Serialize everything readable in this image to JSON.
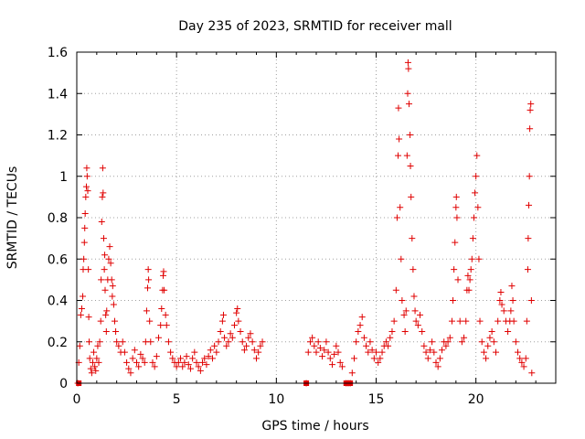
{
  "chart_data": {
    "type": "scatter",
    "title": "Day 235 of 2023, SRMTID for receiver mall",
    "xlabel": "GPS time / hours",
    "ylabel": "SRMTID / TECUs",
    "xlim": [
      0,
      24
    ],
    "ylim": [
      0,
      1.6
    ],
    "xticks": [
      0,
      5,
      10,
      15,
      20
    ],
    "xtick_labels": [
      "0",
      "5",
      "10",
      "15",
      "20"
    ],
    "yticks": [
      0,
      0.2,
      0.4,
      0.6,
      0.8,
      1.0,
      1.2,
      1.4,
      1.6
    ],
    "ytick_labels": [
      "0",
      "0.2",
      "0.4",
      "0.6",
      "0.8",
      "1",
      "1.2",
      "1.4",
      "1.6"
    ],
    "grid": true,
    "marker": "+",
    "color": "#e00000",
    "series": [
      {
        "name": "SRMTID",
        "points": [
          [
            0.05,
            0.0
          ],
          [
            0.1,
            0.1
          ],
          [
            0.15,
            0.18
          ],
          [
            0.2,
            0.33
          ],
          [
            0.25,
            0.36
          ],
          [
            0.3,
            0.42
          ],
          [
            0.32,
            0.55
          ],
          [
            0.35,
            0.6
          ],
          [
            0.38,
            0.68
          ],
          [
            0.4,
            0.75
          ],
          [
            0.42,
            0.82
          ],
          [
            0.45,
            0.9
          ],
          [
            0.48,
            0.95
          ],
          [
            0.5,
            1.04
          ],
          [
            0.52,
            1.0
          ],
          [
            0.55,
            0.93
          ],
          [
            0.58,
            0.55
          ],
          [
            0.6,
            0.32
          ],
          [
            0.62,
            0.2
          ],
          [
            0.65,
            0.12
          ],
          [
            0.7,
            0.07
          ],
          [
            0.75,
            0.05
          ],
          [
            0.8,
            0.1
          ],
          [
            0.85,
            0.15
          ],
          [
            0.9,
            0.08
          ],
          [
            0.95,
            0.06
          ],
          [
            1.0,
            0.12
          ],
          [
            1.05,
            0.18
          ],
          [
            1.1,
            0.1
          ],
          [
            1.15,
            0.2
          ],
          [
            1.2,
            0.3
          ],
          [
            1.22,
            0.5
          ],
          [
            1.25,
            0.78
          ],
          [
            1.28,
            0.9
          ],
          [
            1.3,
            1.04
          ],
          [
            1.32,
            0.92
          ],
          [
            1.35,
            0.7
          ],
          [
            1.38,
            0.55
          ],
          [
            1.4,
            0.62
          ],
          [
            1.42,
            0.45
          ],
          [
            1.45,
            0.33
          ],
          [
            1.48,
            0.25
          ],
          [
            1.5,
            0.35
          ],
          [
            1.55,
            0.5
          ],
          [
            1.6,
            0.6
          ],
          [
            1.65,
            0.66
          ],
          [
            1.7,
            0.58
          ],
          [
            1.75,
            0.5
          ],
          [
            1.78,
            0.42
          ],
          [
            1.8,
            0.47
          ],
          [
            1.85,
            0.38
          ],
          [
            1.9,
            0.3
          ],
          [
            1.95,
            0.25
          ],
          [
            2.0,
            0.2
          ],
          [
            2.1,
            0.18
          ],
          [
            2.2,
            0.15
          ],
          [
            2.3,
            0.2
          ],
          [
            2.4,
            0.15
          ],
          [
            2.5,
            0.1
          ],
          [
            2.6,
            0.07
          ],
          [
            2.7,
            0.05
          ],
          [
            2.8,
            0.12
          ],
          [
            2.9,
            0.16
          ],
          [
            3.0,
            0.1
          ],
          [
            3.1,
            0.08
          ],
          [
            3.2,
            0.14
          ],
          [
            3.3,
            0.12
          ],
          [
            3.4,
            0.1
          ],
          [
            3.45,
            0.2
          ],
          [
            3.5,
            0.35
          ],
          [
            3.55,
            0.46
          ],
          [
            3.58,
            0.55
          ],
          [
            3.6,
            0.5
          ],
          [
            3.65,
            0.3
          ],
          [
            3.7,
            0.2
          ],
          [
            3.8,
            0.1
          ],
          [
            3.9,
            0.08
          ],
          [
            4.0,
            0.13
          ],
          [
            4.1,
            0.22
          ],
          [
            4.2,
            0.28
          ],
          [
            4.25,
            0.36
          ],
          [
            4.3,
            0.45
          ],
          [
            4.33,
            0.52
          ],
          [
            4.35,
            0.54
          ],
          [
            4.38,
            0.45
          ],
          [
            4.45,
            0.33
          ],
          [
            4.5,
            0.28
          ],
          [
            4.6,
            0.2
          ],
          [
            4.7,
            0.15
          ],
          [
            4.8,
            0.12
          ],
          [
            4.9,
            0.1
          ],
          [
            5.0,
            0.08
          ],
          [
            5.1,
            0.1
          ],
          [
            5.2,
            0.12
          ],
          [
            5.3,
            0.08
          ],
          [
            5.4,
            0.1
          ],
          [
            5.5,
            0.13
          ],
          [
            5.6,
            0.09
          ],
          [
            5.7,
            0.07
          ],
          [
            5.8,
            0.12
          ],
          [
            5.9,
            0.15
          ],
          [
            6.0,
            0.1
          ],
          [
            6.1,
            0.08
          ],
          [
            6.2,
            0.06
          ],
          [
            6.3,
            0.1
          ],
          [
            6.4,
            0.12
          ],
          [
            6.5,
            0.09
          ],
          [
            6.6,
            0.13
          ],
          [
            6.7,
            0.16
          ],
          [
            6.8,
            0.12
          ],
          [
            6.9,
            0.18
          ],
          [
            7.0,
            0.15
          ],
          [
            7.1,
            0.2
          ],
          [
            7.2,
            0.25
          ],
          [
            7.3,
            0.3
          ],
          [
            7.35,
            0.33
          ],
          [
            7.4,
            0.22
          ],
          [
            7.5,
            0.18
          ],
          [
            7.6,
            0.2
          ],
          [
            7.7,
            0.24
          ],
          [
            7.8,
            0.22
          ],
          [
            7.9,
            0.28
          ],
          [
            8.0,
            0.34
          ],
          [
            8.05,
            0.36
          ],
          [
            8.1,
            0.3
          ],
          [
            8.2,
            0.25
          ],
          [
            8.3,
            0.2
          ],
          [
            8.4,
            0.16
          ],
          [
            8.5,
            0.18
          ],
          [
            8.6,
            0.22
          ],
          [
            8.7,
            0.24
          ],
          [
            8.8,
            0.2
          ],
          [
            8.9,
            0.16
          ],
          [
            9.0,
            0.12
          ],
          [
            9.1,
            0.15
          ],
          [
            9.2,
            0.18
          ],
          [
            9.3,
            0.2
          ],
          [
            11.5,
            0.0
          ],
          [
            11.6,
            0.15
          ],
          [
            11.7,
            0.2
          ],
          [
            11.8,
            0.22
          ],
          [
            11.9,
            0.18
          ],
          [
            12.0,
            0.15
          ],
          [
            12.1,
            0.2
          ],
          [
            12.2,
            0.17
          ],
          [
            12.3,
            0.13
          ],
          [
            12.4,
            0.16
          ],
          [
            12.5,
            0.2
          ],
          [
            12.6,
            0.15
          ],
          [
            12.7,
            0.12
          ],
          [
            12.8,
            0.09
          ],
          [
            12.9,
            0.14
          ],
          [
            13.0,
            0.18
          ],
          [
            13.1,
            0.15
          ],
          [
            13.2,
            0.1
          ],
          [
            13.3,
            0.08
          ],
          [
            13.5,
            0.0
          ],
          [
            13.6,
            0.0
          ],
          [
            13.7,
            0.0
          ],
          [
            13.8,
            0.05
          ],
          [
            13.9,
            0.12
          ],
          [
            14.0,
            0.2
          ],
          [
            14.1,
            0.25
          ],
          [
            14.2,
            0.28
          ],
          [
            14.3,
            0.32
          ],
          [
            14.4,
            0.22
          ],
          [
            14.5,
            0.18
          ],
          [
            14.6,
            0.15
          ],
          [
            14.7,
            0.2
          ],
          [
            14.8,
            0.16
          ],
          [
            14.9,
            0.12
          ],
          [
            15.0,
            0.15
          ],
          [
            15.1,
            0.1
          ],
          [
            15.2,
            0.12
          ],
          [
            15.3,
            0.15
          ],
          [
            15.4,
            0.18
          ],
          [
            15.5,
            0.2
          ],
          [
            15.6,
            0.18
          ],
          [
            15.7,
            0.22
          ],
          [
            15.8,
            0.25
          ],
          [
            15.9,
            0.3
          ],
          [
            16.0,
            0.45
          ],
          [
            16.05,
            0.8
          ],
          [
            16.1,
            1.1
          ],
          [
            16.12,
            1.33
          ],
          [
            16.15,
            1.18
          ],
          [
            16.2,
            0.85
          ],
          [
            16.25,
            0.6
          ],
          [
            16.3,
            0.4
          ],
          [
            16.4,
            0.33
          ],
          [
            16.45,
            0.25
          ],
          [
            16.5,
            0.35
          ],
          [
            16.55,
            1.1
          ],
          [
            16.58,
            1.4
          ],
          [
            16.6,
            1.55
          ],
          [
            16.62,
            1.52
          ],
          [
            16.65,
            1.35
          ],
          [
            16.7,
            1.2
          ],
          [
            16.72,
            1.05
          ],
          [
            16.75,
            0.9
          ],
          [
            16.8,
            0.7
          ],
          [
            16.85,
            0.55
          ],
          [
            16.9,
            0.42
          ],
          [
            16.95,
            0.35
          ],
          [
            17.0,
            0.3
          ],
          [
            17.1,
            0.28
          ],
          [
            17.2,
            0.33
          ],
          [
            17.3,
            0.25
          ],
          [
            17.4,
            0.18
          ],
          [
            17.5,
            0.15
          ],
          [
            17.6,
            0.12
          ],
          [
            17.7,
            0.16
          ],
          [
            17.8,
            0.2
          ],
          [
            17.9,
            0.15
          ],
          [
            18.0,
            0.1
          ],
          [
            18.1,
            0.08
          ],
          [
            18.2,
            0.12
          ],
          [
            18.3,
            0.16
          ],
          [
            18.4,
            0.2
          ],
          [
            18.5,
            0.18
          ],
          [
            18.6,
            0.2
          ],
          [
            18.7,
            0.22
          ],
          [
            18.8,
            0.3
          ],
          [
            18.85,
            0.4
          ],
          [
            18.9,
            0.55
          ],
          [
            18.95,
            0.68
          ],
          [
            19.0,
            0.85
          ],
          [
            19.02,
            0.9
          ],
          [
            19.05,
            0.8
          ],
          [
            19.1,
            0.5
          ],
          [
            19.2,
            0.3
          ],
          [
            19.3,
            0.2
          ],
          [
            19.4,
            0.22
          ],
          [
            19.5,
            0.3
          ],
          [
            19.55,
            0.45
          ],
          [
            19.6,
            0.52
          ],
          [
            19.65,
            0.45
          ],
          [
            19.7,
            0.5
          ],
          [
            19.75,
            0.55
          ],
          [
            19.8,
            0.6
          ],
          [
            19.85,
            0.7
          ],
          [
            19.9,
            0.8
          ],
          [
            19.95,
            0.92
          ],
          [
            20.0,
            1.0
          ],
          [
            20.05,
            1.1
          ],
          [
            20.1,
            0.85
          ],
          [
            20.15,
            0.6
          ],
          [
            20.2,
            0.3
          ],
          [
            20.3,
            0.2
          ],
          [
            20.4,
            0.15
          ],
          [
            20.5,
            0.12
          ],
          [
            20.6,
            0.18
          ],
          [
            20.7,
            0.22
          ],
          [
            20.8,
            0.25
          ],
          [
            20.9,
            0.2
          ],
          [
            21.0,
            0.15
          ],
          [
            21.1,
            0.3
          ],
          [
            21.2,
            0.4
          ],
          [
            21.25,
            0.44
          ],
          [
            21.3,
            0.38
          ],
          [
            21.4,
            0.35
          ],
          [
            21.5,
            0.3
          ],
          [
            21.6,
            0.25
          ],
          [
            21.7,
            0.3
          ],
          [
            21.75,
            0.35
          ],
          [
            21.8,
            0.47
          ],
          [
            21.85,
            0.4
          ],
          [
            21.9,
            0.3
          ],
          [
            22.0,
            0.2
          ],
          [
            22.1,
            0.15
          ],
          [
            22.2,
            0.12
          ],
          [
            22.3,
            0.1
          ],
          [
            22.4,
            0.08
          ],
          [
            22.5,
            0.12
          ],
          [
            22.55,
            0.3
          ],
          [
            22.6,
            0.55
          ],
          [
            22.62,
            0.7
          ],
          [
            22.65,
            0.86
          ],
          [
            22.68,
            1.0
          ],
          [
            22.7,
            1.23
          ],
          [
            22.72,
            1.32
          ],
          [
            22.75,
            1.35
          ],
          [
            22.78,
            0.4
          ],
          [
            22.8,
            0.05
          ]
        ]
      }
    ],
    "markers_zero": [
      0.1,
      11.5,
      13.5,
      13.6,
      13.7
    ]
  }
}
